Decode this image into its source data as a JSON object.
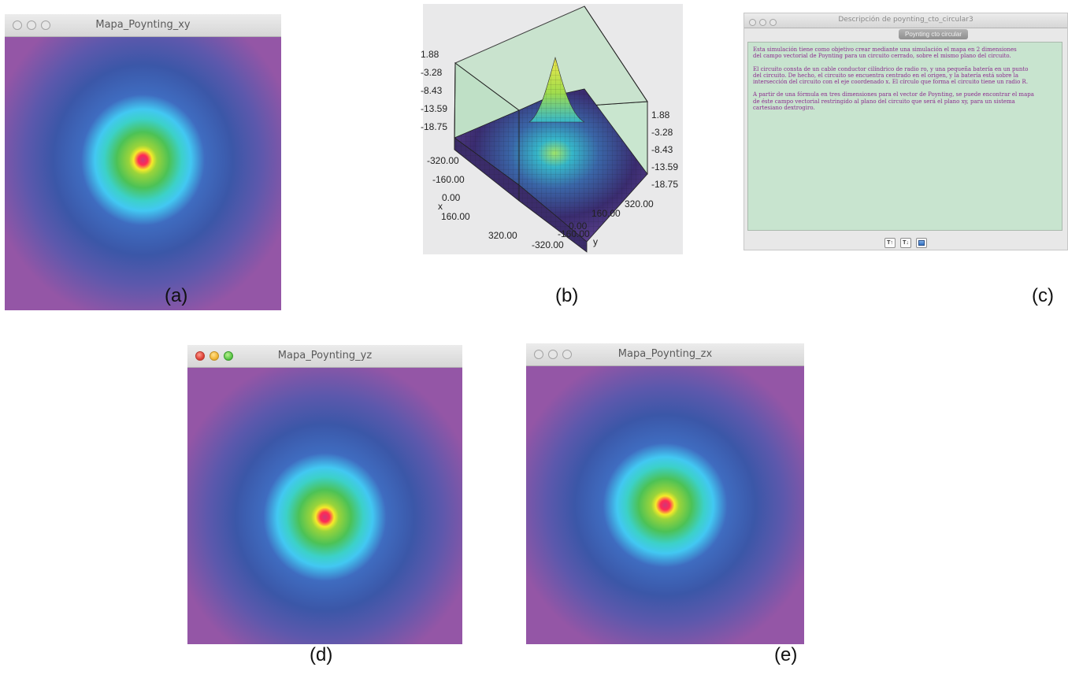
{
  "windows": {
    "xy": {
      "title": "Mapa_Poynting_xy",
      "caption": "(a)"
    },
    "yz": {
      "title": "Mapa_Poynting_yz",
      "caption": "(d)"
    },
    "zx": {
      "title": "Mapa_Poynting_zx",
      "caption": "(e)"
    }
  },
  "plot3d": {
    "caption": "(b)",
    "z_ticks_left": [
      "1.88",
      "-3.28",
      "-8.43",
      "-13.59",
      "-18.75"
    ],
    "z_ticks_right": [
      "1.88",
      "-3.28",
      "-8.43",
      "-13.59",
      "-18.75"
    ],
    "x_ticks": [
      "-320.00",
      "-160.00",
      "0.00",
      "160.00",
      "320.00"
    ],
    "x_label": "x",
    "y_ticks": [
      "320.00",
      "160.00",
      "0.00",
      "-160.00",
      "-320.00"
    ],
    "y_label": "y",
    "colors": {
      "peak": "#f0e84a",
      "mid": "#3bb8d0",
      "base": "#3a2c70",
      "box": "#bfe0c6"
    }
  },
  "description": {
    "caption": "(c)",
    "title": "Descripción de poynting_cto_circular3",
    "tab": "Poynting cto circular",
    "paragraphs": [
      "Esta simulación tiene como objetivo crear mediante una simulación el mapa en 2 dimensiones\ndel campo vectorial de Poynting para un circuito cerrado, sobre el mismo plano del circuito.",
      "El circuito consta de un cable conductor cilíndrico de radio ro, y una pequeña batería en un punto\ndel circuito. De hecho, el circuito se encuentra centrado en el origen, y la batería está sobre la\nintersección del circuito con el eje coordenado x. El círculo que forma el circuito tiene un radio R.",
      "A partir de una fórmula en tres dimensiones para el vector de Poynting, se puede encontrar el mapa\nde éste campo vectorial restringido al plano del circuito que será el plano xy, para un sistema\ncartesiano dextrogiro."
    ],
    "toolbar": {
      "font_up": "T↑",
      "font_down": "T↓",
      "window_icon": "window-icon"
    }
  },
  "colors": {
    "heat_center": "#cf3778",
    "heat_yellow": "#f6ea2a",
    "heat_green": "#4cc256",
    "heat_cyan": "#42c8f2",
    "heat_blue": "#3b57a8",
    "heat_edge": "#9456a6",
    "desc_bg": "#c8e4cf",
    "desc_text": "#8b2c8e"
  }
}
